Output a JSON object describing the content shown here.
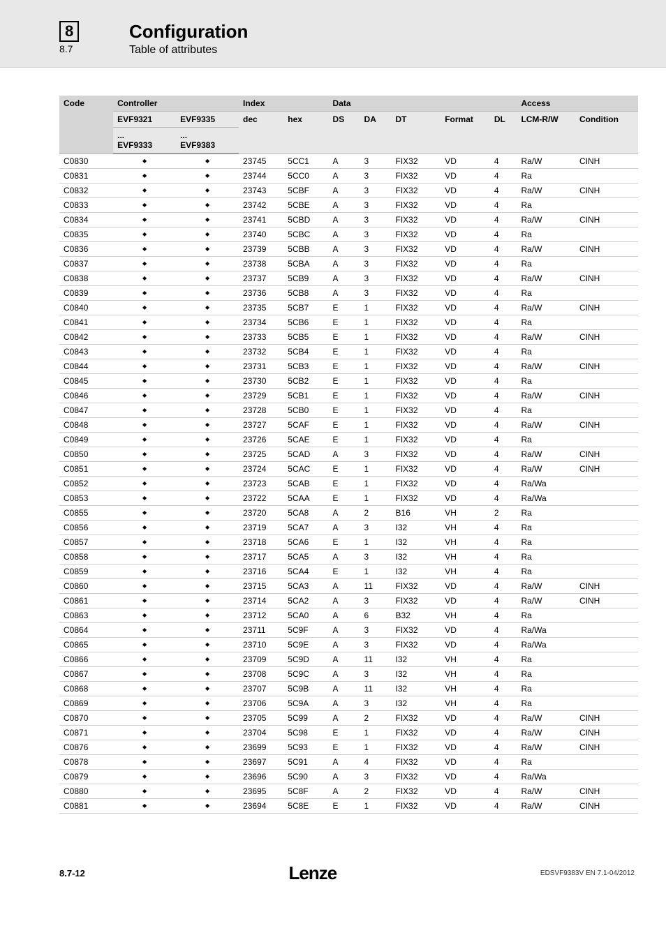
{
  "header": {
    "chapter_num": "8",
    "chapter_sub": "8.7",
    "title": "Configuration",
    "subtitle": "Table of attributes"
  },
  "table": {
    "head": {
      "code": "Code",
      "controller": "Controller",
      "index": "Index",
      "data": "Data",
      "access": "Access",
      "ctrl1a": "EVF9321",
      "ctrl1b": "...",
      "ctrl1c": "EVF9333",
      "ctrl2a": "EVF9335",
      "ctrl2b": "...",
      "ctrl2c": "EVF9383",
      "dec": "dec",
      "hex": "hex",
      "ds": "DS",
      "da": "DA",
      "dt": "DT",
      "format": "Format",
      "dl": "DL",
      "lcm": "LCM-R/W",
      "cond": "Condition"
    },
    "rows": [
      {
        "code": "C0830",
        "c1": "◆",
        "c2": "◆",
        "dec": "23745",
        "hex": "5CC1",
        "ds": "A",
        "da": "3",
        "dt": "FIX32",
        "fmt": "VD",
        "dl": "4",
        "lcm": "Ra/W",
        "cond": "CINH"
      },
      {
        "code": "C0831",
        "c1": "◆",
        "c2": "◆",
        "dec": "23744",
        "hex": "5CC0",
        "ds": "A",
        "da": "3",
        "dt": "FIX32",
        "fmt": "VD",
        "dl": "4",
        "lcm": "Ra",
        "cond": ""
      },
      {
        "code": "C0832",
        "c1": "◆",
        "c2": "◆",
        "dec": "23743",
        "hex": "5CBF",
        "ds": "A",
        "da": "3",
        "dt": "FIX32",
        "fmt": "VD",
        "dl": "4",
        "lcm": "Ra/W",
        "cond": "CINH"
      },
      {
        "code": "C0833",
        "c1": "◆",
        "c2": "◆",
        "dec": "23742",
        "hex": "5CBE",
        "ds": "A",
        "da": "3",
        "dt": "FIX32",
        "fmt": "VD",
        "dl": "4",
        "lcm": "Ra",
        "cond": ""
      },
      {
        "code": "C0834",
        "c1": "◆",
        "c2": "◆",
        "dec": "23741",
        "hex": "5CBD",
        "ds": "A",
        "da": "3",
        "dt": "FIX32",
        "fmt": "VD",
        "dl": "4",
        "lcm": "Ra/W",
        "cond": "CINH"
      },
      {
        "code": "C0835",
        "c1": "◆",
        "c2": "◆",
        "dec": "23740",
        "hex": "5CBC",
        "ds": "A",
        "da": "3",
        "dt": "FIX32",
        "fmt": "VD",
        "dl": "4",
        "lcm": "Ra",
        "cond": ""
      },
      {
        "code": "C0836",
        "c1": "◆",
        "c2": "◆",
        "dec": "23739",
        "hex": "5CBB",
        "ds": "A",
        "da": "3",
        "dt": "FIX32",
        "fmt": "VD",
        "dl": "4",
        "lcm": "Ra/W",
        "cond": "CINH"
      },
      {
        "code": "C0837",
        "c1": "◆",
        "c2": "◆",
        "dec": "23738",
        "hex": "5CBA",
        "ds": "A",
        "da": "3",
        "dt": "FIX32",
        "fmt": "VD",
        "dl": "4",
        "lcm": "Ra",
        "cond": ""
      },
      {
        "code": "C0838",
        "c1": "◆",
        "c2": "◆",
        "dec": "23737",
        "hex": "5CB9",
        "ds": "A",
        "da": "3",
        "dt": "FIX32",
        "fmt": "VD",
        "dl": "4",
        "lcm": "Ra/W",
        "cond": "CINH"
      },
      {
        "code": "C0839",
        "c1": "◆",
        "c2": "◆",
        "dec": "23736",
        "hex": "5CB8",
        "ds": "A",
        "da": "3",
        "dt": "FIX32",
        "fmt": "VD",
        "dl": "4",
        "lcm": "Ra",
        "cond": ""
      },
      {
        "code": "C0840",
        "c1": "◆",
        "c2": "◆",
        "dec": "23735",
        "hex": "5CB7",
        "ds": "E",
        "da": "1",
        "dt": "FIX32",
        "fmt": "VD",
        "dl": "4",
        "lcm": "Ra/W",
        "cond": "CINH"
      },
      {
        "code": "C0841",
        "c1": "◆",
        "c2": "◆",
        "dec": "23734",
        "hex": "5CB6",
        "ds": "E",
        "da": "1",
        "dt": "FIX32",
        "fmt": "VD",
        "dl": "4",
        "lcm": "Ra",
        "cond": ""
      },
      {
        "code": "C0842",
        "c1": "◆",
        "c2": "◆",
        "dec": "23733",
        "hex": "5CB5",
        "ds": "E",
        "da": "1",
        "dt": "FIX32",
        "fmt": "VD",
        "dl": "4",
        "lcm": "Ra/W",
        "cond": "CINH"
      },
      {
        "code": "C0843",
        "c1": "◆",
        "c2": "◆",
        "dec": "23732",
        "hex": "5CB4",
        "ds": "E",
        "da": "1",
        "dt": "FIX32",
        "fmt": "VD",
        "dl": "4",
        "lcm": "Ra",
        "cond": ""
      },
      {
        "code": "C0844",
        "c1": "◆",
        "c2": "◆",
        "dec": "23731",
        "hex": "5CB3",
        "ds": "E",
        "da": "1",
        "dt": "FIX32",
        "fmt": "VD",
        "dl": "4",
        "lcm": "Ra/W",
        "cond": "CINH"
      },
      {
        "code": "C0845",
        "c1": "◆",
        "c2": "◆",
        "dec": "23730",
        "hex": "5CB2",
        "ds": "E",
        "da": "1",
        "dt": "FIX32",
        "fmt": "VD",
        "dl": "4",
        "lcm": "Ra",
        "cond": ""
      },
      {
        "code": "C0846",
        "c1": "◆",
        "c2": "◆",
        "dec": "23729",
        "hex": "5CB1",
        "ds": "E",
        "da": "1",
        "dt": "FIX32",
        "fmt": "VD",
        "dl": "4",
        "lcm": "Ra/W",
        "cond": "CINH"
      },
      {
        "code": "C0847",
        "c1": "◆",
        "c2": "◆",
        "dec": "23728",
        "hex": "5CB0",
        "ds": "E",
        "da": "1",
        "dt": "FIX32",
        "fmt": "VD",
        "dl": "4",
        "lcm": "Ra",
        "cond": ""
      },
      {
        "code": "C0848",
        "c1": "◆",
        "c2": "◆",
        "dec": "23727",
        "hex": "5CAF",
        "ds": "E",
        "da": "1",
        "dt": "FIX32",
        "fmt": "VD",
        "dl": "4",
        "lcm": "Ra/W",
        "cond": "CINH"
      },
      {
        "code": "C0849",
        "c1": "◆",
        "c2": "◆",
        "dec": "23726",
        "hex": "5CAE",
        "ds": "E",
        "da": "1",
        "dt": "FIX32",
        "fmt": "VD",
        "dl": "4",
        "lcm": "Ra",
        "cond": ""
      },
      {
        "code": "C0850",
        "c1": "◆",
        "c2": "◆",
        "dec": "23725",
        "hex": "5CAD",
        "ds": "A",
        "da": "3",
        "dt": "FIX32",
        "fmt": "VD",
        "dl": "4",
        "lcm": "Ra/W",
        "cond": "CINH"
      },
      {
        "code": "C0851",
        "c1": "◆",
        "c2": "◆",
        "dec": "23724",
        "hex": "5CAC",
        "ds": "E",
        "da": "1",
        "dt": "FIX32",
        "fmt": "VD",
        "dl": "4",
        "lcm": "Ra/W",
        "cond": "CINH"
      },
      {
        "code": "C0852",
        "c1": "◆",
        "c2": "◆",
        "dec": "23723",
        "hex": "5CAB",
        "ds": "E",
        "da": "1",
        "dt": "FIX32",
        "fmt": "VD",
        "dl": "4",
        "lcm": "Ra/Wa",
        "cond": ""
      },
      {
        "code": "C0853",
        "c1": "◆",
        "c2": "◆",
        "dec": "23722",
        "hex": "5CAA",
        "ds": "E",
        "da": "1",
        "dt": "FIX32",
        "fmt": "VD",
        "dl": "4",
        "lcm": "Ra/Wa",
        "cond": ""
      },
      {
        "code": "C0855",
        "c1": "◆",
        "c2": "◆",
        "dec": "23720",
        "hex": "5CA8",
        "ds": "A",
        "da": "2",
        "dt": "B16",
        "fmt": "VH",
        "dl": "2",
        "lcm": "Ra",
        "cond": ""
      },
      {
        "code": "C0856",
        "c1": "◆",
        "c2": "◆",
        "dec": "23719",
        "hex": "5CA7",
        "ds": "A",
        "da": "3",
        "dt": "I32",
        "fmt": "VH",
        "dl": "4",
        "lcm": "Ra",
        "cond": ""
      },
      {
        "code": "C0857",
        "c1": "◆",
        "c2": "◆",
        "dec": "23718",
        "hex": "5CA6",
        "ds": "E",
        "da": "1",
        "dt": "I32",
        "fmt": "VH",
        "dl": "4",
        "lcm": "Ra",
        "cond": ""
      },
      {
        "code": "C0858",
        "c1": "◆",
        "c2": "◆",
        "dec": "23717",
        "hex": "5CA5",
        "ds": "A",
        "da": "3",
        "dt": "I32",
        "fmt": "VH",
        "dl": "4",
        "lcm": "Ra",
        "cond": ""
      },
      {
        "code": "C0859",
        "c1": "◆",
        "c2": "◆",
        "dec": "23716",
        "hex": "5CA4",
        "ds": "E",
        "da": "1",
        "dt": "I32",
        "fmt": "VH",
        "dl": "4",
        "lcm": "Ra",
        "cond": ""
      },
      {
        "code": "C0860",
        "c1": "◆",
        "c2": "◆",
        "dec": "23715",
        "hex": "5CA3",
        "ds": "A",
        "da": "11",
        "dt": "FIX32",
        "fmt": "VD",
        "dl": "4",
        "lcm": "Ra/W",
        "cond": "CINH"
      },
      {
        "code": "C0861",
        "c1": "◆",
        "c2": "◆",
        "dec": "23714",
        "hex": "5CA2",
        "ds": "A",
        "da": "3",
        "dt": "FIX32",
        "fmt": "VD",
        "dl": "4",
        "lcm": "Ra/W",
        "cond": "CINH"
      },
      {
        "code": "C0863",
        "c1": "◆",
        "c2": "◆",
        "dec": "23712",
        "hex": "5CA0",
        "ds": "A",
        "da": "6",
        "dt": "B32",
        "fmt": "VH",
        "dl": "4",
        "lcm": "Ra",
        "cond": ""
      },
      {
        "code": "C0864",
        "c1": "◆",
        "c2": "◆",
        "dec": "23711",
        "hex": "5C9F",
        "ds": "A",
        "da": "3",
        "dt": "FIX32",
        "fmt": "VD",
        "dl": "4",
        "lcm": "Ra/Wa",
        "cond": ""
      },
      {
        "code": "C0865",
        "c1": "◆",
        "c2": "◆",
        "dec": "23710",
        "hex": "5C9E",
        "ds": "A",
        "da": "3",
        "dt": "FIX32",
        "fmt": "VD",
        "dl": "4",
        "lcm": "Ra/Wa",
        "cond": ""
      },
      {
        "code": "C0866",
        "c1": "◆",
        "c2": "◆",
        "dec": "23709",
        "hex": "5C9D",
        "ds": "A",
        "da": "11",
        "dt": "I32",
        "fmt": "VH",
        "dl": "4",
        "lcm": "Ra",
        "cond": ""
      },
      {
        "code": "C0867",
        "c1": "◆",
        "c2": "◆",
        "dec": "23708",
        "hex": "5C9C",
        "ds": "A",
        "da": "3",
        "dt": "I32",
        "fmt": "VH",
        "dl": "4",
        "lcm": "Ra",
        "cond": ""
      },
      {
        "code": "C0868",
        "c1": "◆",
        "c2": "◆",
        "dec": "23707",
        "hex": "5C9B",
        "ds": "A",
        "da": "11",
        "dt": "I32",
        "fmt": "VH",
        "dl": "4",
        "lcm": "Ra",
        "cond": ""
      },
      {
        "code": "C0869",
        "c1": "◆",
        "c2": "◆",
        "dec": "23706",
        "hex": "5C9A",
        "ds": "A",
        "da": "3",
        "dt": "I32",
        "fmt": "VH",
        "dl": "4",
        "lcm": "Ra",
        "cond": ""
      },
      {
        "code": "C0870",
        "c1": "◆",
        "c2": "◆",
        "dec": "23705",
        "hex": "5C99",
        "ds": "A",
        "da": "2",
        "dt": "FIX32",
        "fmt": "VD",
        "dl": "4",
        "lcm": "Ra/W",
        "cond": "CINH"
      },
      {
        "code": "C0871",
        "c1": "◆",
        "c2": "◆",
        "dec": "23704",
        "hex": "5C98",
        "ds": "E",
        "da": "1",
        "dt": "FIX32",
        "fmt": "VD",
        "dl": "4",
        "lcm": "Ra/W",
        "cond": "CINH"
      },
      {
        "code": "C0876",
        "c1": "◆",
        "c2": "◆",
        "dec": "23699",
        "hex": "5C93",
        "ds": "E",
        "da": "1",
        "dt": "FIX32",
        "fmt": "VD",
        "dl": "4",
        "lcm": "Ra/W",
        "cond": "CINH"
      },
      {
        "code": "C0878",
        "c1": "◆",
        "c2": "◆",
        "dec": "23697",
        "hex": "5C91",
        "ds": "A",
        "da": "4",
        "dt": "FIX32",
        "fmt": "VD",
        "dl": "4",
        "lcm": "Ra",
        "cond": ""
      },
      {
        "code": "C0879",
        "c1": "◆",
        "c2": "◆",
        "dec": "23696",
        "hex": "5C90",
        "ds": "A",
        "da": "3",
        "dt": "FIX32",
        "fmt": "VD",
        "dl": "4",
        "lcm": "Ra/Wa",
        "cond": ""
      },
      {
        "code": "C0880",
        "c1": "◆",
        "c2": "◆",
        "dec": "23695",
        "hex": "5C8F",
        "ds": "A",
        "da": "2",
        "dt": "FIX32",
        "fmt": "VD",
        "dl": "4",
        "lcm": "Ra/W",
        "cond": "CINH"
      },
      {
        "code": "C0881",
        "c1": "◆",
        "c2": "◆",
        "dec": "23694",
        "hex": "5C8E",
        "ds": "E",
        "da": "1",
        "dt": "FIX32",
        "fmt": "VD",
        "dl": "4",
        "lcm": "Ra/W",
        "cond": "CINH"
      }
    ]
  },
  "footer": {
    "left": "8.7-12",
    "center": "Lenze",
    "right": "EDSVF9383V EN 7.1-04/2012"
  }
}
